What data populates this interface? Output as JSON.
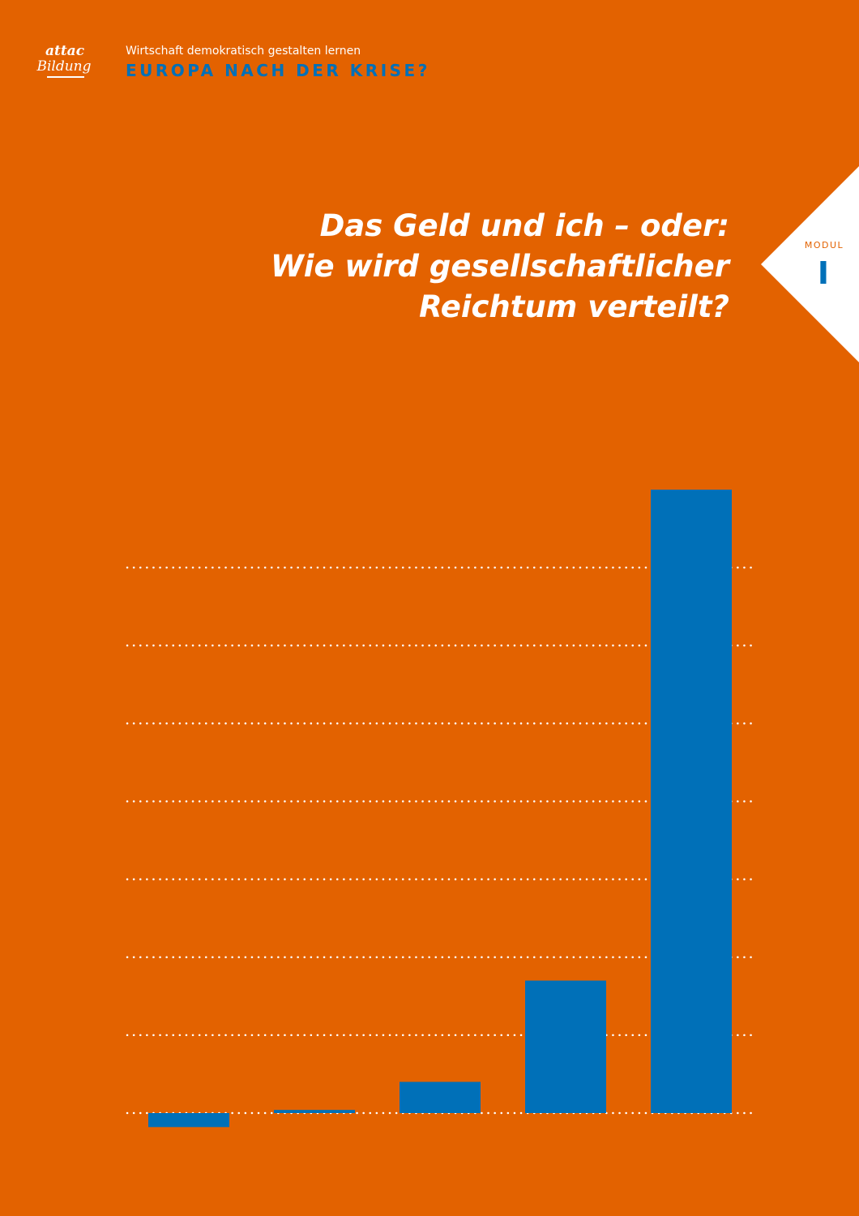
{
  "logo": {
    "brand": "attac",
    "sub": "Bildung"
  },
  "header": {
    "series": "Wirtschaft demokratisch gestalten lernen",
    "title": "EUROPA NACH DER KRISE?"
  },
  "cover_title": [
    "Das Geld und ich – oder:",
    "Wie wird gesellschaftlicher",
    "Reichtum verteilt?"
  ],
  "module": {
    "label": "MODUL",
    "number": "I"
  },
  "chart_data": {
    "type": "bar",
    "categories": [
      null,
      null,
      null,
      null,
      null
    ],
    "values": [
      -0.18,
      0.04,
      0.4,
      1.7,
      8.0
    ],
    "color": "#0070b8",
    "ylim": [
      0,
      8
    ],
    "yticks": [
      0,
      1,
      2,
      3,
      4,
      5,
      6,
      7
    ],
    "grid": true
  }
}
